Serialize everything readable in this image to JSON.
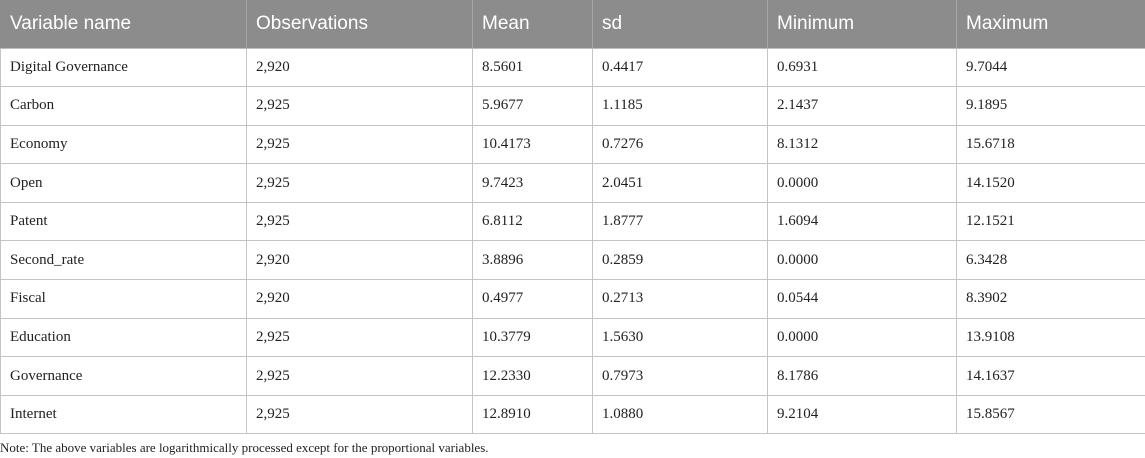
{
  "table": {
    "headers": [
      "Variable name",
      "Observations",
      "Mean",
      "sd",
      "Minimum",
      "Maximum"
    ],
    "rows": [
      [
        "Digital Governance",
        "2,920",
        "8.5601",
        "0.4417",
        "0.6931",
        "9.7044"
      ],
      [
        "Carbon",
        "2,925",
        "5.9677",
        "1.1185",
        "2.1437",
        "9.1895"
      ],
      [
        "Economy",
        "2,925",
        "10.4173",
        "0.7276",
        "8.1312",
        "15.6718"
      ],
      [
        "Open",
        "2,925",
        "9.7423",
        "2.0451",
        "0.0000",
        "14.1520"
      ],
      [
        "Patent",
        "2,925",
        "6.8112",
        "1.8777",
        "1.6094",
        "12.1521"
      ],
      [
        "Second_rate",
        "2,920",
        "3.8896",
        "0.2859",
        "0.0000",
        "6.3428"
      ],
      [
        "Fiscal",
        "2,920",
        "0.4977",
        "0.2713",
        "0.0544",
        "8.3902"
      ],
      [
        "Education",
        "2,925",
        "10.3779",
        "1.5630",
        "0.0000",
        "13.9108"
      ],
      [
        "Governance",
        "2,925",
        "12.2330",
        "0.7973",
        "8.1786",
        "14.1637"
      ],
      [
        "Internet",
        "2,925",
        "12.8910",
        "1.0880",
        "9.2104",
        "15.8567"
      ]
    ]
  },
  "note": "Note: The above variables are logarithmically processed except for the proportional variables.",
  "colors": {
    "header_bg": "#8c8c8c",
    "header_text": "#ffffff",
    "grid": "#c4c4c4"
  }
}
